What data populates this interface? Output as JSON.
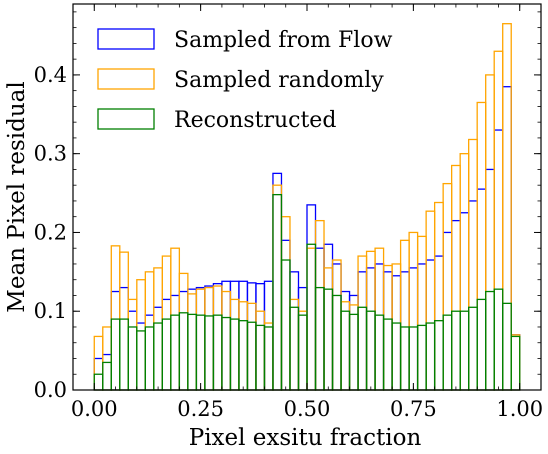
{
  "chart_data": {
    "type": "bar",
    "subtype": "step-histogram",
    "title": "",
    "xlabel": "Pixel exsitu fraction",
    "ylabel": "Mean Pixel residual",
    "xlim": [
      -0.05,
      1.05
    ],
    "ylim": [
      0,
      0.49
    ],
    "bins": 50,
    "bin_start": 0.0,
    "bin_width": 0.02,
    "xticks": [
      0.0,
      0.25,
      0.5,
      0.75,
      1.0
    ],
    "xtick_labels": [
      "0.00",
      "0.25",
      "0.50",
      "0.75",
      "1.00"
    ],
    "yticks": [
      0.0,
      0.1,
      0.2,
      0.3,
      0.4
    ],
    "ytick_labels": [
      "0.0",
      "0.1",
      "0.2",
      "0.3",
      "0.4"
    ],
    "legend_position": "top-left",
    "grid": false,
    "series": [
      {
        "name": "Sampled from Flow",
        "color": "#0000ff",
        "values": [
          0.04,
          0.045,
          0.125,
          0.13,
          0.1,
          0.085,
          0.095,
          0.105,
          0.115,
          0.12,
          0.125,
          0.128,
          0.13,
          0.132,
          0.135,
          0.138,
          0.138,
          0.138,
          0.136,
          0.135,
          0.138,
          0.275,
          0.19,
          0.15,
          0.13,
          0.235,
          0.18,
          0.185,
          0.16,
          0.125,
          0.12,
          0.15,
          0.155,
          0.16,
          0.15,
          0.145,
          0.15,
          0.155,
          0.16,
          0.165,
          0.17,
          0.2,
          0.215,
          0.225,
          0.24,
          0.255,
          0.28,
          0.33,
          0.385,
          0.07
        ]
      },
      {
        "name": "Sampled randomly",
        "color": "#ffa500",
        "values": [
          0.068,
          0.08,
          0.183,
          0.175,
          0.115,
          0.14,
          0.15,
          0.155,
          0.17,
          0.18,
          0.148,
          0.122,
          0.128,
          0.13,
          0.132,
          0.125,
          0.115,
          0.112,
          0.11,
          0.1,
          0.085,
          0.26,
          0.22,
          0.115,
          0.1,
          0.18,
          0.215,
          0.155,
          0.165,
          0.112,
          0.108,
          0.17,
          0.176,
          0.18,
          0.158,
          0.16,
          0.19,
          0.2,
          0.195,
          0.227,
          0.238,
          0.262,
          0.285,
          0.3,
          0.318,
          0.365,
          0.4,
          0.43,
          0.465,
          0.07
        ]
      },
      {
        "name": "Reconstructed",
        "color": "#008000",
        "values": [
          0.02,
          0.035,
          0.09,
          0.09,
          0.08,
          0.075,
          0.08,
          0.085,
          0.09,
          0.095,
          0.098,
          0.096,
          0.095,
          0.094,
          0.095,
          0.092,
          0.09,
          0.088,
          0.086,
          0.082,
          0.08,
          0.248,
          0.165,
          0.105,
          0.095,
          0.185,
          0.13,
          0.128,
          0.12,
          0.1,
          0.096,
          0.105,
          0.1,
          0.095,
          0.09,
          0.085,
          0.08,
          0.08,
          0.082,
          0.085,
          0.088,
          0.095,
          0.1,
          0.1,
          0.105,
          0.115,
          0.125,
          0.128,
          0.11,
          0.068
        ]
      }
    ]
  }
}
